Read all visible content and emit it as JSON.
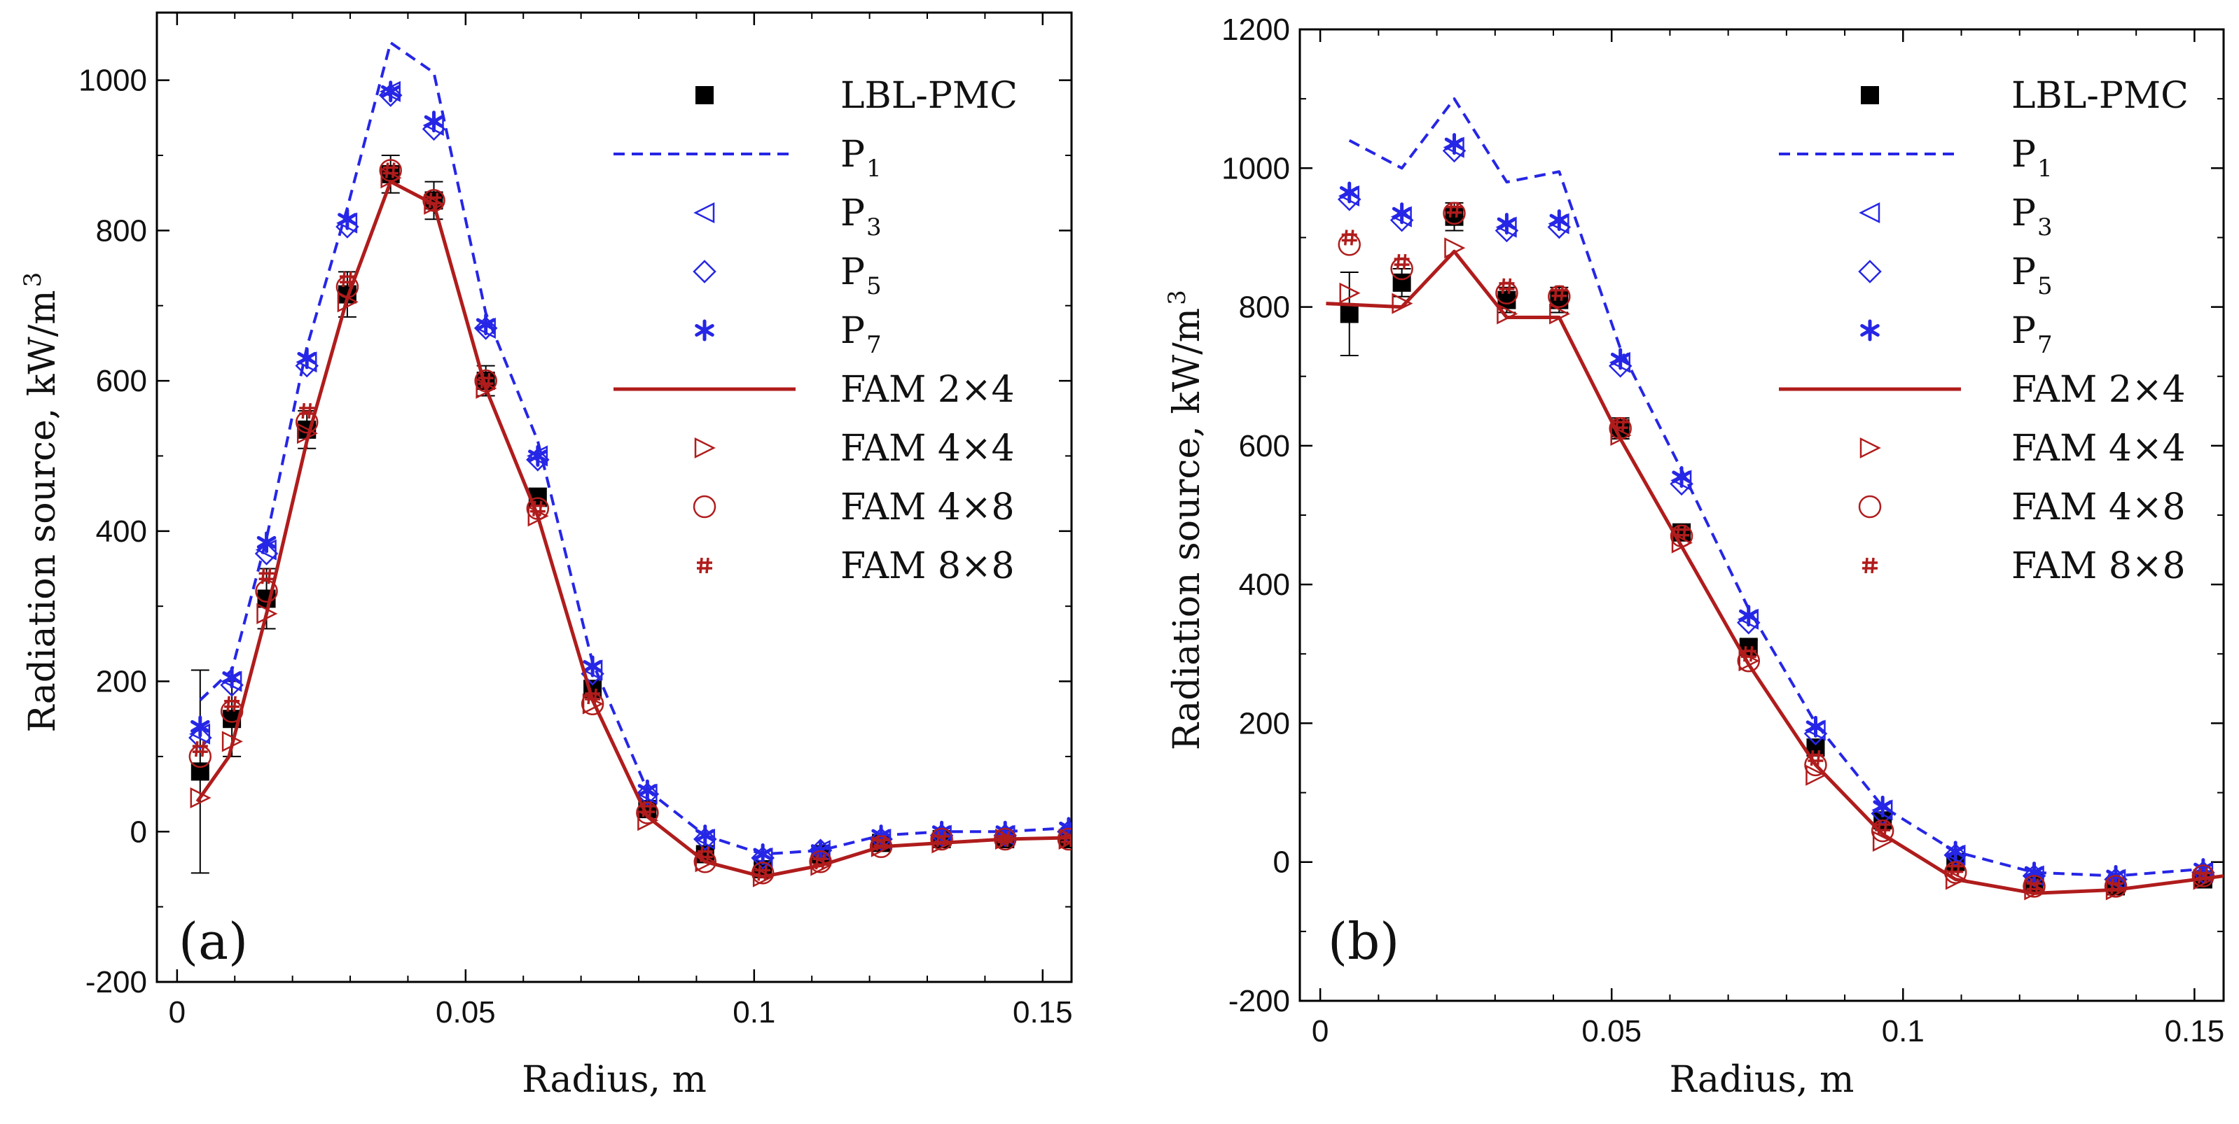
{
  "colors": {
    "black": "#000000",
    "blue": "#2626e6",
    "red": "#b01c1c",
    "axis": "#000000"
  },
  "chart_data": [
    {
      "type": "line",
      "panel_label": "(a)",
      "xlabel": "Radius, m",
      "ylabel": "Radiation source, kW/m",
      "ylabel_sup": "3",
      "xlim": [
        -0.0035,
        0.155
      ],
      "ylim": [
        -200,
        1090
      ],
      "xticks": [
        0,
        0.05,
        0.1,
        0.15
      ],
      "xtick_labels": [
        "0",
        "0.05",
        "0.1",
        "0.15"
      ],
      "yticks": [
        -200,
        0,
        200,
        400,
        600,
        800,
        1000
      ],
      "ytick_labels": [
        "-200",
        "0",
        "200",
        "400",
        "600",
        "800",
        "1000"
      ],
      "legend_position": "top-right",
      "legend": [
        {
          "key": "LBL-PMC",
          "label": "LBL-PMC",
          "sub": ""
        },
        {
          "key": "P1",
          "label": "P",
          "sub": "1"
        },
        {
          "key": "P3",
          "label": "P",
          "sub": "3"
        },
        {
          "key": "P5",
          "label": "P",
          "sub": "5"
        },
        {
          "key": "P7",
          "label": "P",
          "sub": "7"
        },
        {
          "key": "FAM24",
          "label": "FAM 2×4",
          "sub": ""
        },
        {
          "key": "FAM44",
          "label": "FAM 4×4",
          "sub": ""
        },
        {
          "key": "FAM48",
          "label": "FAM 4×8",
          "sub": ""
        },
        {
          "key": "FAM88",
          "label": "FAM 8×8",
          "sub": ""
        }
      ],
      "x": [
        0.004,
        0.0095,
        0.0155,
        0.0225,
        0.0295,
        0.037,
        0.0445,
        0.0535,
        0.0625,
        0.072,
        0.0815,
        0.0915,
        0.1015,
        0.1115,
        0.122,
        0.1325,
        0.1435,
        0.1545
      ],
      "series": [
        {
          "name": "LBL-PMC",
          "kind": "marker",
          "marker": "filled-square",
          "color": "black",
          "values": [
            80,
            150,
            310,
            535,
            715,
            875,
            840,
            600,
            445,
            190,
            30,
            -30,
            -50,
            -30,
            -15,
            -10,
            -10,
            -10
          ],
          "errors": [
            135,
            50,
            40,
            25,
            30,
            25,
            25,
            20,
            12,
            10,
            8,
            8,
            8,
            8,
            6,
            6,
            6,
            6
          ]
        },
        {
          "name": "P1",
          "kind": "line",
          "style": "dashed",
          "color": "blue",
          "x": [
            0.004,
            0.0095,
            0.0155,
            0.0225,
            0.0295,
            0.037,
            0.0445,
            0.0535,
            0.0625,
            0.072,
            0.0815,
            0.0915,
            0.1015,
            0.1115,
            0.122,
            0.1325,
            0.1435,
            0.1545
          ],
          "values": [
            175,
            215,
            390,
            645,
            830,
            1050,
            1010,
            690,
            520,
            225,
            55,
            -5,
            -30,
            -25,
            -5,
            0,
            0,
            5
          ]
        },
        {
          "name": "P3",
          "kind": "marker",
          "marker": "left-triangle",
          "color": "blue",
          "values": [
            130,
            200,
            375,
            625,
            810,
            985,
            940,
            670,
            500,
            215,
            50,
            -10,
            -35,
            -25,
            -10,
            -5,
            -5,
            0
          ]
        },
        {
          "name": "P5",
          "kind": "marker",
          "marker": "diamond",
          "color": "blue",
          "values": [
            125,
            195,
            370,
            620,
            805,
            980,
            935,
            670,
            495,
            210,
            50,
            -10,
            -35,
            -25,
            -10,
            -5,
            -5,
            0
          ]
        },
        {
          "name": "P7",
          "kind": "marker",
          "marker": "asterisk",
          "color": "blue",
          "values": [
            140,
            205,
            385,
            630,
            815,
            985,
            945,
            675,
            500,
            220,
            55,
            -5,
            -30,
            -25,
            -5,
            0,
            0,
            5
          ]
        },
        {
          "name": "FAM 2×4",
          "kind": "line",
          "style": "solid",
          "color": "red",
          "x": [
            0.0035,
            0.009,
            0.0155,
            0.0225,
            0.0295,
            0.037,
            0.0445,
            0.0535,
            0.0625,
            0.072,
            0.0815,
            0.0915,
            0.1015,
            0.1115,
            0.122,
            0.1325,
            0.1435,
            0.155
          ],
          "values": [
            40,
            100,
            290,
            520,
            710,
            865,
            835,
            590,
            420,
            175,
            20,
            -40,
            -60,
            -45,
            -20,
            -15,
            -10,
            -8
          ]
        },
        {
          "name": "FAM 4×4",
          "kind": "marker",
          "marker": "right-triangle",
          "color": "red",
          "values": [
            45,
            120,
            290,
            530,
            705,
            870,
            835,
            590,
            420,
            170,
            15,
            -40,
            -60,
            -45,
            -20,
            -15,
            -10,
            -10
          ]
        },
        {
          "name": "FAM 4×8",
          "kind": "marker",
          "marker": "circle",
          "color": "red",
          "values": [
            100,
            160,
            320,
            545,
            725,
            880,
            840,
            600,
            430,
            170,
            25,
            -40,
            -55,
            -40,
            -20,
            -10,
            -10,
            -10
          ]
        },
        {
          "name": "FAM 8×8",
          "kind": "marker",
          "marker": "hash",
          "color": "red",
          "values": [
            110,
            170,
            340,
            560,
            735,
            880,
            840,
            600,
            430,
            180,
            30,
            -30,
            -55,
            -40,
            -15,
            -10,
            -10,
            -10
          ]
        }
      ]
    },
    {
      "type": "line",
      "panel_label": "(b)",
      "xlabel": "Radius, m",
      "ylabel": "Radiation source, kW/m",
      "ylabel_sup": "3",
      "xlim": [
        -0.0035,
        0.155
      ],
      "ylim": [
        -200,
        1200
      ],
      "xticks": [
        0,
        0.05,
        0.1,
        0.15
      ],
      "xtick_labels": [
        "0",
        "0.05",
        "0.1",
        "0.15"
      ],
      "yticks": [
        -200,
        0,
        200,
        400,
        600,
        800,
        1000,
        1200
      ],
      "ytick_labels": [
        "-200",
        "0",
        "200",
        "400",
        "600",
        "800",
        "1000",
        "1200"
      ],
      "legend_position": "top-right",
      "legend": [
        {
          "key": "LBL-PMC",
          "label": "LBL-PMC",
          "sub": ""
        },
        {
          "key": "P1",
          "label": "P",
          "sub": "1"
        },
        {
          "key": "P3",
          "label": "P",
          "sub": "3"
        },
        {
          "key": "P5",
          "label": "P",
          "sub": "5"
        },
        {
          "key": "P7",
          "label": "P",
          "sub": "7"
        },
        {
          "key": "FAM24",
          "label": "FAM 2×4",
          "sub": ""
        },
        {
          "key": "FAM44",
          "label": "FAM 4×4",
          "sub": ""
        },
        {
          "key": "FAM48",
          "label": "FAM 4×8",
          "sub": ""
        },
        {
          "key": "FAM88",
          "label": "FAM 8×8",
          "sub": ""
        }
      ],
      "x": [
        0.005,
        0.014,
        0.023,
        0.032,
        0.041,
        0.0515,
        0.062,
        0.0735,
        0.085,
        0.0965,
        0.109,
        0.1225,
        0.1365,
        0.1515
      ],
      "series": [
        {
          "name": "LBL-PMC",
          "kind": "marker",
          "marker": "filled-square",
          "color": "black",
          "values": [
            790,
            835,
            930,
            810,
            810,
            625,
            475,
            310,
            165,
            60,
            0,
            -30,
            -35,
            -25
          ],
          "errors": [
            60,
            20,
            20,
            18,
            18,
            15,
            12,
            10,
            8,
            6,
            6,
            6,
            6,
            6
          ]
        },
        {
          "name": "P1",
          "kind": "line",
          "style": "dashed",
          "color": "blue",
          "x": [
            0.005,
            0.014,
            0.023,
            0.032,
            0.041,
            0.0515,
            0.062,
            0.0735,
            0.085,
            0.0965,
            0.109,
            0.1225,
            0.1365,
            0.1515
          ],
          "values": [
            1040,
            1000,
            1100,
            980,
            995,
            740,
            565,
            365,
            200,
            80,
            15,
            -15,
            -20,
            -10
          ]
        },
        {
          "name": "P3",
          "kind": "marker",
          "marker": "left-triangle",
          "color": "blue",
          "values": [
            960,
            930,
            1030,
            915,
            920,
            720,
            550,
            350,
            190,
            75,
            10,
            -20,
            -25,
            -15
          ]
        },
        {
          "name": "P5",
          "kind": "marker",
          "marker": "diamond",
          "color": "blue",
          "values": [
            955,
            925,
            1025,
            910,
            915,
            715,
            545,
            345,
            185,
            70,
            10,
            -20,
            -25,
            -15
          ]
        },
        {
          "name": "P7",
          "kind": "marker",
          "marker": "asterisk",
          "color": "blue",
          "values": [
            965,
            935,
            1035,
            920,
            925,
            725,
            555,
            355,
            195,
            80,
            15,
            -15,
            -20,
            -10
          ]
        },
        {
          "name": "FAM 2×4",
          "kind": "line",
          "style": "solid",
          "color": "red",
          "x": [
            0.001,
            0.014,
            0.023,
            0.032,
            0.041,
            0.0515,
            0.062,
            0.0735,
            0.085,
            0.0965,
            0.109,
            0.1225,
            0.1365,
            0.155
          ],
          "values": [
            805,
            800,
            880,
            785,
            785,
            610,
            455,
            285,
            140,
            40,
            -25,
            -45,
            -40,
            -20
          ]
        },
        {
          "name": "FAM 4×4",
          "kind": "marker",
          "marker": "right-triangle",
          "color": "red",
          "values": [
            820,
            805,
            885,
            790,
            790,
            615,
            460,
            290,
            125,
            30,
            -25,
            -40,
            -40,
            -25
          ]
        },
        {
          "name": "FAM 4×8",
          "kind": "marker",
          "marker": "circle",
          "color": "red",
          "values": [
            890,
            855,
            935,
            820,
            815,
            625,
            470,
            290,
            140,
            45,
            -15,
            -35,
            -35,
            -20
          ]
        },
        {
          "name": "FAM 8×8",
          "kind": "marker",
          "marker": "hash",
          "color": "red",
          "values": [
            900,
            865,
            940,
            830,
            820,
            630,
            475,
            300,
            150,
            50,
            -10,
            -35,
            -35,
            -20
          ]
        }
      ]
    }
  ]
}
